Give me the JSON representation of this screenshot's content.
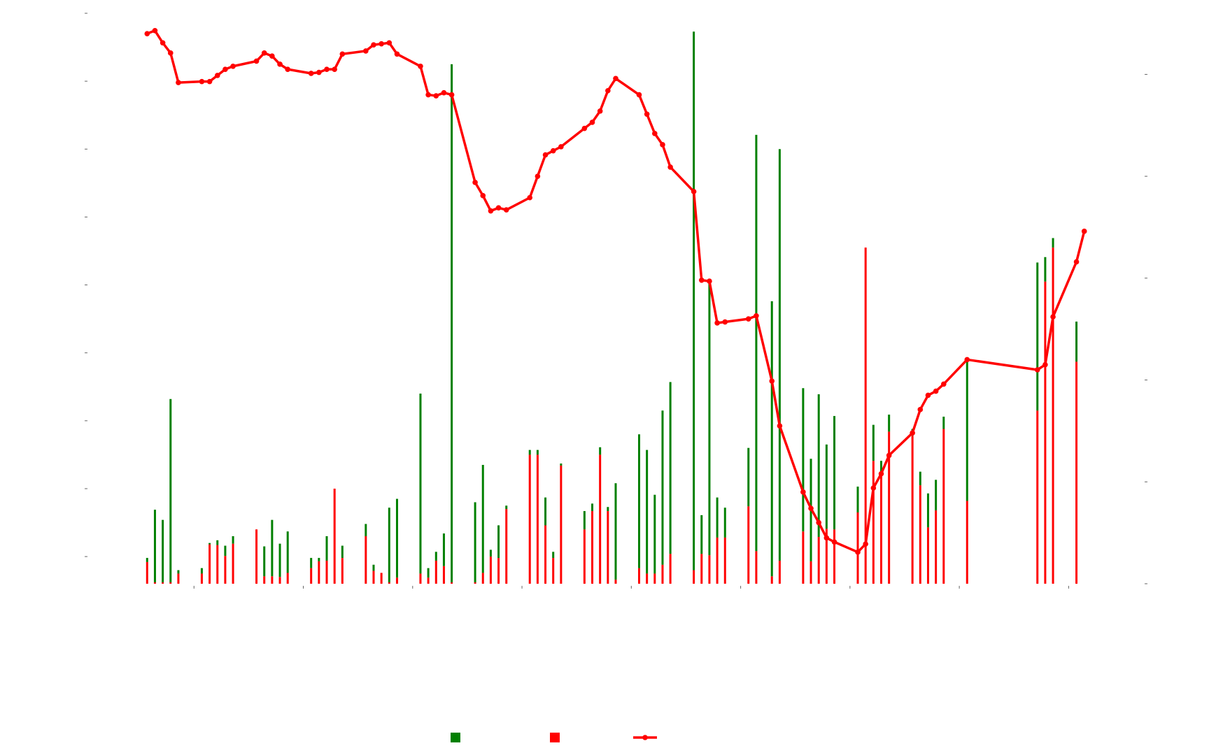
{
  "chart_data": {
    "type": "bar",
    "stacked": true,
    "legend": "bottom",
    "x": [
      8,
      9,
      10,
      11,
      12,
      15,
      16,
      17,
      18,
      19,
      22,
      23,
      24,
      25,
      26,
      29,
      30,
      31,
      32,
      33,
      36,
      37,
      38,
      39,
      40,
      43,
      44,
      45,
      46,
      47,
      50,
      51,
      52,
      53,
      54,
      57,
      58,
      59,
      60,
      61,
      64,
      65,
      66,
      67,
      68,
      71,
      72,
      73,
      74,
      75,
      78,
      79,
      80,
      81,
      82,
      85,
      86,
      88,
      89,
      92,
      93,
      94,
      95,
      96,
      99,
      100,
      101,
      102,
      103,
      106,
      107,
      108,
      109,
      110,
      113,
      122,
      123,
      124,
      127
    ],
    "xlim": [
      0,
      136
    ],
    "xticks": [
      14,
      28,
      42,
      56,
      70,
      84,
      98,
      112,
      126
    ],
    "ylim": [
      0,
      840
    ],
    "yticks": [
      40,
      140,
      240,
      340,
      440,
      540,
      640,
      740,
      840
    ],
    "y2lim": [
      0,
      5.6
    ],
    "y2ticks": [
      0,
      1,
      2,
      3,
      4,
      5
    ],
    "series": [
      {
        "type": "bar",
        "color": "#008000",
        "values": [
          6,
          107,
          92,
          270,
          5,
          8,
          2,
          7,
          15,
          11,
          0,
          44,
          83,
          49,
          61,
          15,
          5,
          36,
          0,
          18,
          18,
          9,
          0,
          110,
          116,
          265,
          14,
          13,
          48,
          763,
          118,
          159,
          10,
          48,
          5,
          7,
          7,
          41,
          9,
          3,
          27,
          11,
          11,
          6,
          142,
          197,
          182,
          116,
          227,
          253,
          793,
          57,
          402,
          59,
          44,
          86,
          613,
          405,
          606,
          211,
          151,
          210,
          124,
          167,
          38,
          0,
          53,
          18,
          25,
          10,
          20,
          50,
          45,
          18,
          208,
          218,
          36,
          14,
          59
        ]
      },
      {
        "type": "bar",
        "color": "#ff0000",
        "values": [
          32,
          2,
          2,
          2,
          15,
          15,
          58,
          57,
          41,
          59,
          80,
          11,
          11,
          10,
          16,
          23,
          33,
          34,
          140,
          38,
          70,
          19,
          16,
          2,
          9,
          15,
          9,
          34,
          26,
          2,
          2,
          16,
          40,
          38,
          110,
          190,
          190,
          86,
          38,
          174,
          80,
          107,
          190,
          107,
          6,
          23,
          15,
          15,
          28,
          44,
          20,
          44,
          42,
          68,
          68,
          114,
          48,
          11,
          34,
          77,
          33,
          69,
          81,
          80,
          105,
          495,
          181,
          163,
          224,
          218,
          145,
          83,
          108,
          228,
          122,
          255,
          445,
          495,
          327
        ]
      },
      {
        "type": "line",
        "axis": "y2",
        "color": "#ff0000",
        "marker": true,
        "x": [
          8,
          9,
          10,
          11,
          12,
          15,
          16,
          17,
          18,
          19,
          22,
          23,
          24,
          25,
          26,
          29,
          30,
          31,
          32,
          33,
          36,
          37,
          38,
          39,
          40,
          43,
          44,
          45,
          46,
          47,
          50,
          51,
          52,
          53,
          54,
          57,
          58,
          59,
          60,
          61,
          64,
          65,
          66,
          67,
          68,
          71,
          72,
          73,
          74,
          75,
          78,
          79,
          80,
          81,
          82,
          85,
          86,
          88,
          89,
          92,
          93,
          94,
          95,
          96,
          99,
          100,
          101,
          102,
          103,
          106,
          107,
          108,
          109,
          110,
          113,
          122,
          123,
          124,
          127,
          128
        ],
        "values": [
          5.4,
          5.43,
          5.31,
          5.21,
          4.92,
          4.93,
          4.93,
          4.99,
          5.05,
          5.08,
          5.13,
          5.21,
          5.18,
          5.1,
          5.05,
          5.01,
          5.02,
          5.05,
          5.05,
          5.2,
          5.23,
          5.29,
          5.3,
          5.31,
          5.2,
          5.08,
          4.8,
          4.79,
          4.82,
          4.8,
          3.94,
          3.81,
          3.66,
          3.69,
          3.67,
          3.79,
          4.0,
          4.21,
          4.25,
          4.29,
          4.47,
          4.53,
          4.64,
          4.84,
          4.96,
          4.8,
          4.61,
          4.42,
          4.31,
          4.09,
          3.85,
          2.98,
          2.97,
          2.56,
          2.57,
          2.6,
          2.63,
          1.99,
          1.55,
          0.9,
          0.74,
          0.6,
          0.45,
          0.41,
          0.31,
          0.39,
          0.94,
          1.08,
          1.26,
          1.48,
          1.71,
          1.85,
          1.89,
          1.96,
          2.2,
          2.1,
          2.15,
          2.62,
          3.16,
          3.46
        ]
      }
    ]
  }
}
